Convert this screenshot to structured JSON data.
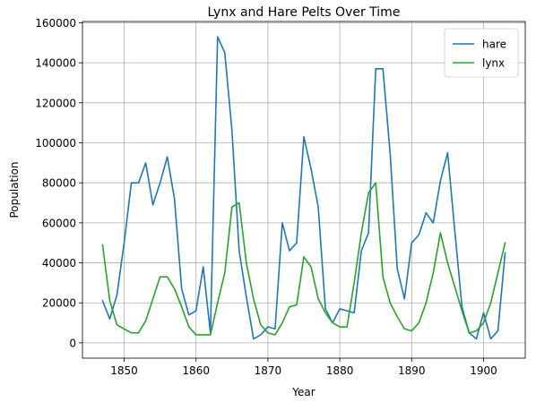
{
  "chart_data": {
    "type": "line",
    "title": "Lynx and Hare Pelts Over Time",
    "xlabel": "Year",
    "ylabel": "Population",
    "xlim": [
      1844.2,
      1905.8
    ],
    "ylim": [
      -7650,
      160650
    ],
    "xticks": [
      1850,
      1860,
      1870,
      1880,
      1890,
      1900
    ],
    "yticks": [
      0,
      20000,
      40000,
      60000,
      80000,
      100000,
      120000,
      140000,
      160000
    ],
    "grid": true,
    "legend_position": "top-right",
    "x": [
      1847,
      1848,
      1849,
      1850,
      1851,
      1852,
      1853,
      1854,
      1855,
      1856,
      1857,
      1858,
      1859,
      1860,
      1861,
      1862,
      1863,
      1864,
      1865,
      1866,
      1867,
      1868,
      1869,
      1870,
      1871,
      1872,
      1873,
      1874,
      1875,
      1876,
      1877,
      1878,
      1879,
      1880,
      1881,
      1882,
      1883,
      1884,
      1885,
      1886,
      1887,
      1888,
      1889,
      1890,
      1891,
      1892,
      1893,
      1894,
      1895,
      1896,
      1897,
      1898,
      1899,
      1900,
      1901,
      1902,
      1903
    ],
    "series": [
      {
        "name": "hare",
        "color": "#1f77b4",
        "values": [
          21000,
          12000,
          24000,
          50000,
          80000,
          80000,
          90000,
          69000,
          80000,
          93000,
          72000,
          27000,
          14000,
          16000,
          38000,
          5000,
          153000,
          145000,
          106000,
          46000,
          23000,
          2000,
          4000,
          8000,
          7000,
          60000,
          46000,
          50000,
          103000,
          87000,
          68000,
          17000,
          10000,
          17000,
          16000,
          15000,
          46000,
          55000,
          137000,
          137000,
          95000,
          37000,
          22000,
          50000,
          54000,
          65000,
          60000,
          81000,
          95000,
          56000,
          18000,
          5000,
          2000,
          15000,
          2000,
          6000,
          45000
        ]
      },
      {
        "name": "lynx",
        "color": "#2ca02c",
        "values": [
          49000,
          21000,
          9000,
          7000,
          5000,
          5000,
          11000,
          22000,
          33000,
          33000,
          27000,
          18000,
          8000,
          4000,
          4000,
          4000,
          20000,
          35000,
          68000,
          70000,
          40000,
          22000,
          9000,
          5000,
          4000,
          10000,
          18000,
          19000,
          43000,
          38000,
          22000,
          15000,
          10000,
          8000,
          8000,
          30000,
          55000,
          75000,
          80000,
          33000,
          20000,
          13000,
          7000,
          6000,
          10000,
          20000,
          35000,
          55000,
          40000,
          28000,
          16000,
          5000,
          6000,
          10000,
          20000,
          35000,
          50000
        ]
      }
    ]
  }
}
